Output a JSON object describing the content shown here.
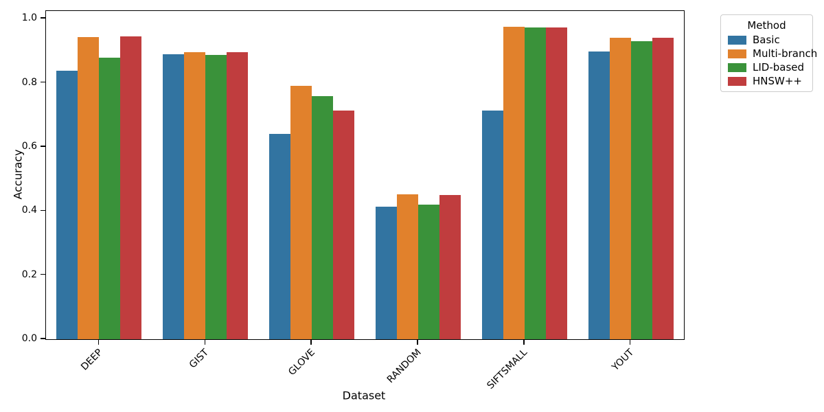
{
  "figure": {
    "xlabel": "Dataset",
    "ylabel": "Accuracy",
    "legend_title": "Method"
  },
  "chart_data": {
    "type": "bar",
    "title": "",
    "xlabel": "Dataset",
    "ylabel": "Accuracy",
    "categories": [
      "DEEP",
      "GIST",
      "GLOVE",
      "RANDOM",
      "SIFTSMALL",
      "YOUT"
    ],
    "series": [
      {
        "name": "Basic",
        "color": "#3274a1",
        "values": [
          0.838,
          0.888,
          0.641,
          0.414,
          0.714,
          0.898
        ]
      },
      {
        "name": "Multi-branch",
        "color": "#e1812c",
        "values": [
          0.942,
          0.896,
          0.79,
          0.452,
          0.975,
          0.941
        ]
      },
      {
        "name": "LID-based",
        "color": "#3a923a",
        "values": [
          0.879,
          0.886,
          0.759,
          0.419,
          0.972,
          0.93
        ]
      },
      {
        "name": "HNSW++",
        "color": "#c03d3e",
        "values": [
          0.944,
          0.895,
          0.714,
          0.45,
          0.972,
          0.941
        ]
      }
    ],
    "ylim": [
      0,
      1.024
    ],
    "yticks": [
      0.0,
      0.2,
      0.4,
      0.6,
      0.8,
      1.0
    ],
    "xtick_rotation": 45,
    "grid": false,
    "legend": {
      "title": "Method",
      "position": "outside-upper-right"
    }
  }
}
